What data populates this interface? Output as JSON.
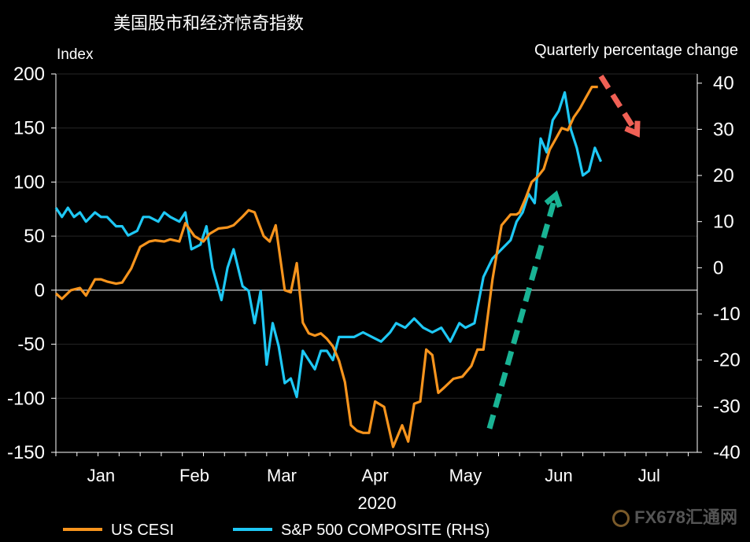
{
  "page": {
    "title": "美国股市和经济惊奇指数"
  },
  "watermark": {
    "text": "FX678汇通网"
  },
  "colors": {
    "cesi": "#f7941d",
    "sp500": "#1ec8f5",
    "background": "#000000",
    "axis": "#ffffff",
    "grid": "#262626",
    "arrow_up": "#19b394",
    "arrow_down": "#f06055"
  },
  "chart_data": {
    "type": "line",
    "title": "美国股市和经济惊奇指数",
    "ylabel_left": "Index",
    "ylabel_right": "Quarterly percentage change",
    "xlabel": "2020",
    "x_tick_labels": [
      "Jan",
      "Feb",
      "Mar",
      "Apr",
      "May",
      "Jun",
      "Jul"
    ],
    "x_tick_dates": [
      "2020-01-15",
      "2020-02-15",
      "2020-03-15",
      "2020-04-15",
      "2020-05-15",
      "2020-06-15",
      "2020-07-15"
    ],
    "xlim": [
      "2019-12-31",
      "2020-07-31"
    ],
    "ylim_left": [
      -150,
      200
    ],
    "ylim_right": [
      -40,
      42
    ],
    "left_ticks": [
      200,
      150,
      100,
      50,
      0,
      -50,
      -100,
      -150
    ],
    "right_ticks": [
      40,
      30,
      20,
      10,
      0,
      -10,
      -20,
      -30,
      -40
    ],
    "grid": true,
    "zero_line": true,
    "legend_position": "bottom",
    "series": [
      {
        "name": "US CESI",
        "axis": "left",
        "color": "#f7941d",
        "x": [
          "2019-12-31",
          "2020-01-02",
          "2020-01-05",
          "2020-01-08",
          "2020-01-10",
          "2020-01-13",
          "2020-01-15",
          "2020-01-17",
          "2020-01-20",
          "2020-01-22",
          "2020-01-25",
          "2020-01-28",
          "2020-01-31",
          "2020-02-02",
          "2020-02-05",
          "2020-02-07",
          "2020-02-10",
          "2020-02-12",
          "2020-02-15",
          "2020-02-18",
          "2020-02-20",
          "2020-02-23",
          "2020-02-26",
          "2020-02-28",
          "2020-03-02",
          "2020-03-04",
          "2020-03-06",
          "2020-03-09",
          "2020-03-11",
          "2020-03-13",
          "2020-03-16",
          "2020-03-18",
          "2020-03-20",
          "2020-03-22",
          "2020-03-24",
          "2020-03-26",
          "2020-03-28",
          "2020-03-30",
          "2020-04-01",
          "2020-04-03",
          "2020-04-05",
          "2020-04-07",
          "2020-04-09",
          "2020-04-11",
          "2020-04-13",
          "2020-04-15",
          "2020-04-18",
          "2020-04-21",
          "2020-04-24",
          "2020-04-26",
          "2020-04-28",
          "2020-04-30",
          "2020-05-02",
          "2020-05-04",
          "2020-05-06",
          "2020-05-08",
          "2020-05-11",
          "2020-05-14",
          "2020-05-17",
          "2020-05-19",
          "2020-05-21",
          "2020-05-24",
          "2020-05-27",
          "2020-05-30",
          "2020-06-01",
          "2020-06-02",
          "2020-06-04",
          "2020-06-06",
          "2020-06-08",
          "2020-06-10",
          "2020-06-12",
          "2020-06-14",
          "2020-06-16",
          "2020-06-18",
          "2020-06-20",
          "2020-06-22",
          "2020-06-24",
          "2020-06-26",
          "2020-06-28"
        ],
        "y": [
          -3,
          -8,
          0,
          2,
          -5,
          10,
          10,
          8,
          6,
          7,
          20,
          40,
          45,
          46,
          45,
          47,
          45,
          62,
          50,
          45,
          52,
          57,
          58,
          60,
          68,
          74,
          72,
          50,
          45,
          60,
          0,
          -2,
          25,
          -30,
          -40,
          -42,
          -40,
          -45,
          -52,
          -65,
          -85,
          -125,
          -130,
          -132,
          -132,
          -103,
          -108,
          -145,
          -125,
          -140,
          -105,
          -103,
          -55,
          -60,
          -95,
          -90,
          -82,
          -80,
          -70,
          -55,
          -55,
          10,
          60,
          70,
          70,
          72,
          85,
          100,
          105,
          112,
          130,
          140,
          150,
          148,
          160,
          168,
          178,
          188,
          188
        ]
      },
      {
        "name": "S&P 500 COMPOSITE (RHS)",
        "axis": "right",
        "color": "#1ec8f5",
        "x": [
          "2019-12-31",
          "2020-01-02",
          "2020-01-04",
          "2020-01-06",
          "2020-01-08",
          "2020-01-10",
          "2020-01-13",
          "2020-01-15",
          "2020-01-17",
          "2020-01-20",
          "2020-01-22",
          "2020-01-24",
          "2020-01-27",
          "2020-01-29",
          "2020-01-31",
          "2020-02-03",
          "2020-02-05",
          "2020-02-07",
          "2020-02-10",
          "2020-02-12",
          "2020-02-14",
          "2020-02-17",
          "2020-02-19",
          "2020-02-21",
          "2020-02-24",
          "2020-02-26",
          "2020-02-28",
          "2020-03-02",
          "2020-03-04",
          "2020-03-06",
          "2020-03-08",
          "2020-03-10",
          "2020-03-12",
          "2020-03-14",
          "2020-03-16",
          "2020-03-18",
          "2020-03-20",
          "2020-03-22",
          "2020-03-24",
          "2020-03-26",
          "2020-03-28",
          "2020-03-30",
          "2020-04-01",
          "2020-04-03",
          "2020-04-06",
          "2020-04-08",
          "2020-04-11",
          "2020-04-14",
          "2020-04-17",
          "2020-04-20",
          "2020-04-22",
          "2020-04-25",
          "2020-04-28",
          "2020-05-01",
          "2020-05-04",
          "2020-05-07",
          "2020-05-10",
          "2020-05-13",
          "2020-05-15",
          "2020-05-18",
          "2020-05-21",
          "2020-05-24",
          "2020-05-27",
          "2020-05-30",
          "2020-06-01",
          "2020-06-03",
          "2020-06-05",
          "2020-06-07",
          "2020-06-09",
          "2020-06-11",
          "2020-06-13",
          "2020-06-15",
          "2020-06-17",
          "2020-06-19",
          "2020-06-21",
          "2020-06-23",
          "2020-06-25",
          "2020-06-27",
          "2020-06-29"
        ],
        "y": [
          13,
          11,
          13,
          11,
          12,
          10,
          12,
          11,
          11,
          9,
          9,
          7,
          8,
          11,
          11,
          10,
          12,
          11,
          10,
          12,
          4,
          5,
          9,
          0,
          -7,
          0,
          4,
          -4,
          -5,
          -12,
          -5,
          -21,
          -12,
          -17,
          -25,
          -24,
          -28,
          -18,
          -20,
          -22,
          -18,
          -18,
          -20,
          -15,
          -15,
          -15,
          -14,
          -15,
          -16,
          -14,
          -12,
          -13,
          -11,
          -13,
          -14,
          -13,
          -16,
          -12,
          -13,
          -12,
          -2,
          2,
          4,
          6,
          10,
          12,
          16,
          14,
          28,
          25,
          32,
          34,
          38,
          30,
          26,
          20,
          21,
          26,
          23
        ]
      }
    ],
    "annotations": [
      {
        "type": "arrow",
        "direction": "up",
        "color": "#19b394",
        "style": "dashed"
      },
      {
        "type": "arrow",
        "direction": "down",
        "color": "#f06055",
        "style": "dashed"
      }
    ]
  }
}
